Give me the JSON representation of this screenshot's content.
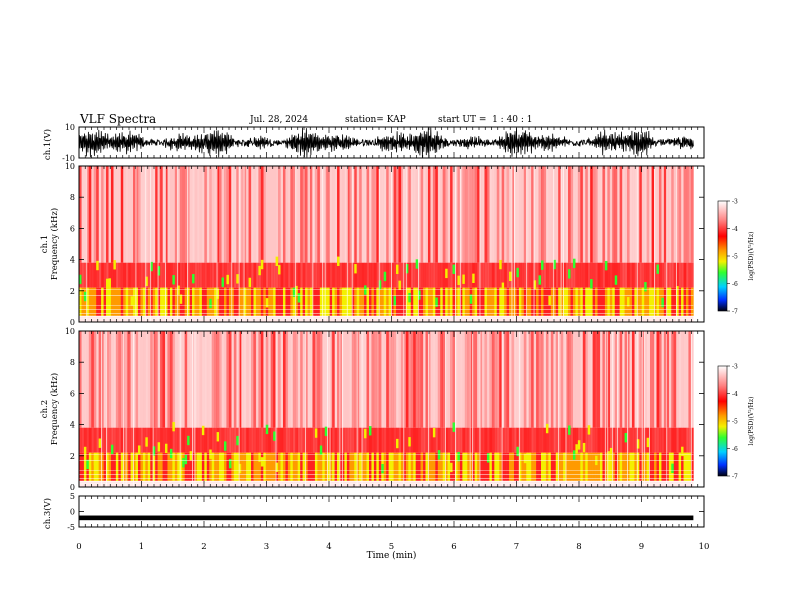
{
  "header": {
    "title": "VLF Spectra",
    "date": "Jul. 28, 2024",
    "station": "station= KAP",
    "start": "start UT =  1 : 40 : 1"
  },
  "chart_data": [
    {
      "type": "line",
      "ylabel": "ch.1(V)",
      "ylim": [
        -10,
        10
      ],
      "yticks": [
        "10",
        "-10"
      ],
      "description_series": "noisy oscillating waveform"
    },
    {
      "type": "heatmap",
      "ylabel": "ch.1\nFrequency (kHz)",
      "ylabel_lines": [
        "ch.1",
        "Frequency (kHz)"
      ],
      "ylim": [
        0,
        10
      ],
      "yticks": [
        "0",
        "2",
        "4",
        "6",
        "8",
        "10"
      ],
      "colorbar": {
        "label": "log(PSD)(V²/Hz)",
        "ticks": [
          "-3",
          "-4",
          "-5",
          "-6",
          "-7"
        ],
        "range": [
          -7,
          -3
        ]
      }
    },
    {
      "type": "heatmap",
      "ylabel_lines": [
        "ch.2",
        "Frequency (kHz)"
      ],
      "ylim": [
        0,
        10
      ],
      "yticks": [
        "0",
        "2",
        "4",
        "6",
        "8",
        "10"
      ],
      "colorbar": {
        "label": "log(PSD)(V²/Hz)",
        "ticks": [
          "-3",
          "-4",
          "-5",
          "-6",
          "-7"
        ],
        "range": [
          -7,
          -3
        ]
      }
    },
    {
      "type": "line",
      "ylabel": "ch.3(V)",
      "ylim": [
        -5,
        5
      ],
      "yticks": [
        "5",
        "0",
        "-5"
      ]
    }
  ],
  "xaxis": {
    "label": "Time (min)",
    "range": [
      0,
      10
    ],
    "ticks": [
      "0",
      "1",
      "2",
      "3",
      "4",
      "5",
      "6",
      "7",
      "8",
      "9",
      "10"
    ],
    "data_end": 9.83
  },
  "colors": {
    "white": "#ffffff",
    "red": "#ff2020",
    "orange": "#ff9a00",
    "yellow": "#f4f000",
    "green": "#30ff30",
    "cyan": "#00d0ff",
    "blue": "#0030ff",
    "black": "#000000"
  }
}
